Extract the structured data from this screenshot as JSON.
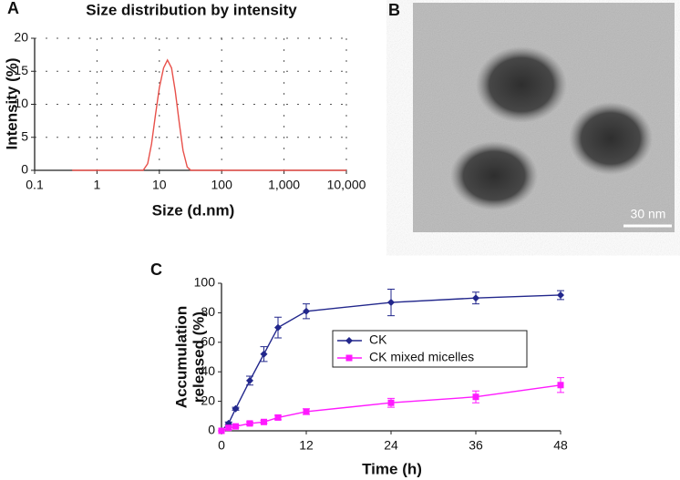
{
  "chart_data": [
    {
      "type": "line",
      "panel": "A",
      "title": "Size distribution by intensity",
      "x_label": "Size (d.nm)",
      "y_label": "Intensity (%)",
      "x_scale": "log",
      "grid": true,
      "color": "#e8504a",
      "x": [
        0.4,
        5.5,
        6.5,
        7.5,
        8.7,
        10,
        11.7,
        13.5,
        15.7,
        18,
        21,
        24,
        28,
        32,
        10000
      ],
      "values": [
        0,
        0,
        1,
        4,
        8.5,
        12.5,
        15.5,
        16.7,
        15.5,
        12,
        7,
        3,
        0.5,
        0,
        0
      ],
      "xlim": [
        0.1,
        10000
      ],
      "xticks": [
        0.1,
        1,
        10,
        100,
        {
          "value": 1000,
          "label": "1,000"
        },
        {
          "value": 10000,
          "label": "10,000"
        }
      ],
      "ylim": [
        0,
        20
      ],
      "yticks": [
        0,
        5,
        10,
        15,
        20
      ]
    },
    {
      "type": "image",
      "panel": "B",
      "scale_bar": "30 nm"
    },
    {
      "type": "line",
      "panel": "C",
      "x_label": "Time (h)",
      "y_label": [
        "Accumulation",
        "released (%)"
      ],
      "grid": false,
      "legend": "center-right",
      "x": [
        0,
        1,
        2,
        4,
        6,
        8,
        12,
        24,
        36,
        48
      ],
      "series": [
        {
          "name": "CK",
          "color": "#22278c",
          "marker": "diamond",
          "values": [
            0,
            5,
            15,
            34,
            52,
            70,
            81,
            87,
            90,
            92
          ],
          "errors": [
            0,
            1,
            1,
            3,
            5,
            7,
            5,
            9,
            4,
            3
          ]
        },
        {
          "name": "CK mixed micelles",
          "color": "#ff1aff",
          "marker": "square",
          "values": [
            0,
            2,
            3,
            5,
            6,
            9,
            13,
            19,
            23,
            31
          ],
          "errors": [
            0,
            1,
            1,
            1,
            1,
            1.5,
            2,
            3,
            4,
            5
          ]
        }
      ],
      "xlim": [
        0,
        48
      ],
      "xticks": [
        0,
        12,
        24,
        36,
        48
      ],
      "ylim": [
        0,
        100
      ],
      "yticks": [
        0,
        20,
        40,
        60,
        80,
        100
      ]
    }
  ]
}
